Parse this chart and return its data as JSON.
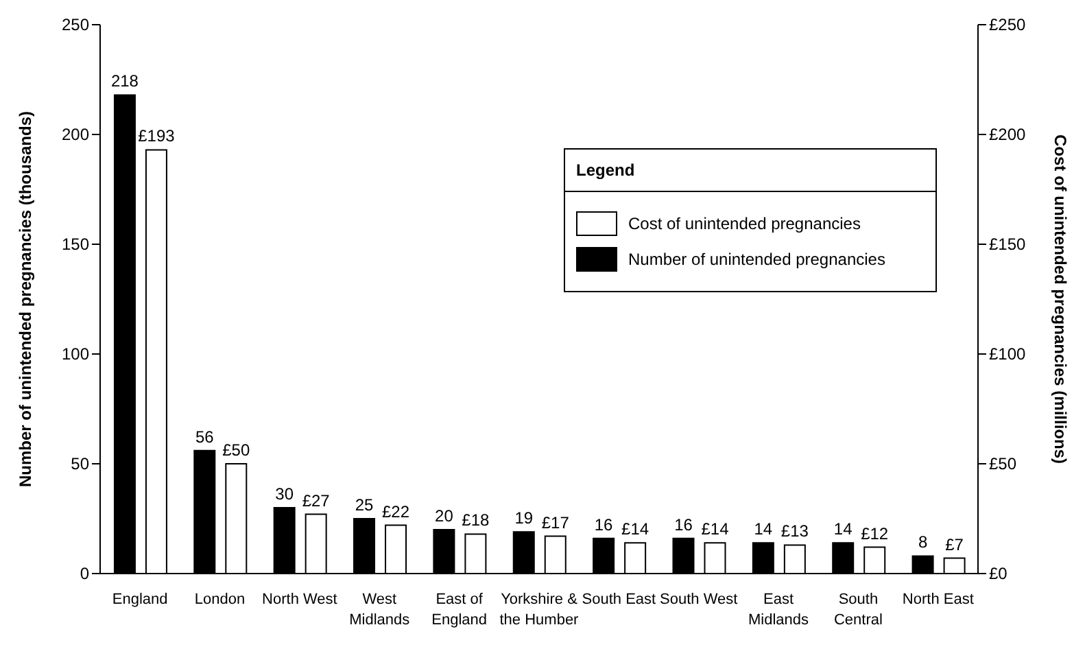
{
  "chart_data": {
    "type": "bar",
    "ylabel": "Number of unintended pregnancies (thousands)",
    "y2label": "Cost of unintended pregnancies (millions)",
    "legend_title": "Legend",
    "legend": "top right",
    "categories": [
      "England",
      "London",
      "North West",
      "West Midlands",
      "East of England",
      "Yorkshire & the Humber",
      "South East",
      "South West",
      "East Midlands",
      "South Central",
      "North East"
    ],
    "series": [
      {
        "name": "Number of unintended pregnancies",
        "color": "#000000",
        "values": [
          218,
          56,
          30,
          25,
          20,
          19,
          16,
          16,
          14,
          14,
          8
        ],
        "value_labels": [
          "218",
          "56",
          "30",
          "25",
          "20",
          "19",
          "16",
          "16",
          "14",
          "14",
          "8"
        ]
      },
      {
        "name": "Cost of unintended pregnancies",
        "color": "#ffffff",
        "axis": "y2",
        "values": [
          193,
          50,
          27,
          22,
          18,
          17,
          14,
          14,
          13,
          12,
          7
        ],
        "value_labels": [
          "£193",
          "£50",
          "£27",
          "£22",
          "£18",
          "£17",
          "£14",
          "£14",
          "£13",
          "£12",
          "£7"
        ]
      }
    ],
    "ylim": [
      0,
      250
    ],
    "yticks": [
      0,
      50,
      100,
      150,
      200,
      250
    ],
    "y2lim": [
      0,
      250
    ],
    "y2ticks": [
      {
        "value": 0,
        "label": "£0"
      },
      {
        "value": 50,
        "label": "£50"
      },
      {
        "value": 100,
        "label": "£100"
      },
      {
        "value": 150,
        "label": "£150"
      },
      {
        "value": 200,
        "label": "£200"
      },
      {
        "value": 250,
        "label": "£250"
      }
    ],
    "grid": false
  }
}
